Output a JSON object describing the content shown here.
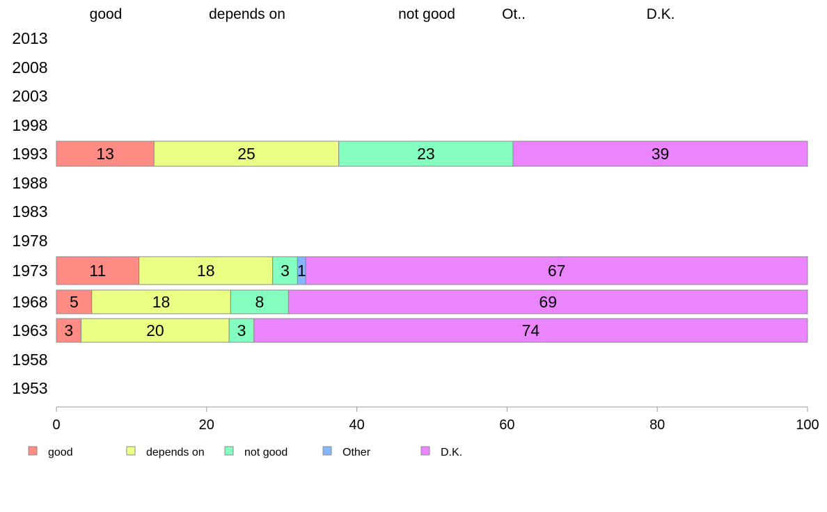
{
  "chart_data": {
    "type": "bar",
    "orientation": "horizontal",
    "stacked": true,
    "categories": [
      "2013",
      "2008",
      "2003",
      "1998",
      "1993",
      "1988",
      "1983",
      "1978",
      "1973",
      "1968",
      "1963",
      "1958",
      "1953"
    ],
    "series": [
      {
        "name": "good",
        "color": "#FF8C84",
        "values": [
          null,
          null,
          null,
          null,
          13,
          null,
          null,
          null,
          11,
          4.7,
          3.3,
          null,
          null
        ]
      },
      {
        "name": "depends on",
        "color": "#EBFF84",
        "values": [
          null,
          null,
          null,
          null,
          24.6,
          null,
          null,
          null,
          17.8,
          18.5,
          19.7,
          null,
          null
        ]
      },
      {
        "name": "not good",
        "color": "#84FFBF",
        "values": [
          null,
          null,
          null,
          null,
          23.2,
          null,
          null,
          null,
          3.3,
          7.7,
          3.3,
          null,
          null
        ]
      },
      {
        "name": "Other",
        "color": "#84B5FF",
        "values": [
          null,
          null,
          null,
          null,
          0,
          null,
          null,
          null,
          1.1,
          0,
          0,
          null,
          null
        ]
      },
      {
        "name": "D.K.",
        "color": "#EB84FF",
        "values": [
          null,
          null,
          null,
          null,
          39.2,
          null,
          null,
          null,
          66.8,
          69.1,
          73.7,
          null,
          null
        ]
      }
    ],
    "data_labels": {
      "1993": [
        "13",
        "25",
        "23",
        "",
        "39"
      ],
      "1973": [
        "11",
        "18",
        "3",
        "1",
        "67"
      ],
      "1968": [
        "5",
        "18",
        "8",
        "",
        "69"
      ],
      "1963": [
        "3",
        "20",
        "3",
        "",
        "74"
      ]
    },
    "top_labels": [
      "good",
      "depends on",
      "not good",
      "Ot..",
      "D.K."
    ],
    "x_ticks": [
      "0",
      "20",
      "40",
      "60",
      "80",
      "100"
    ],
    "xlim": [
      0,
      100
    ],
    "grid": false,
    "legend_position": "bottom-left"
  }
}
